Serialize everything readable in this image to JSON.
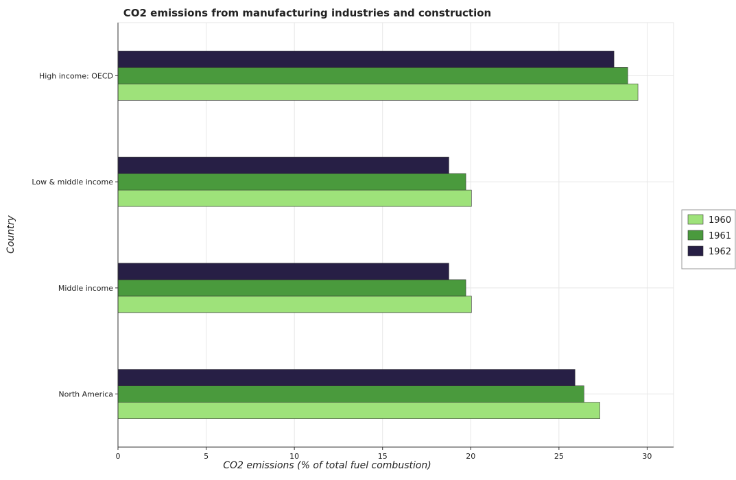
{
  "chart_data": {
    "type": "bar",
    "orientation": "horizontal",
    "title": "CO2 emissions from manufacturing industries and construction",
    "xlabel": "CO2 emissions (% of total fuel combustion)",
    "ylabel": "Country",
    "xlim": [
      0,
      31.5
    ],
    "xticks": [
      0,
      5,
      10,
      15,
      20,
      25,
      30
    ],
    "categories": [
      "High income: OECD",
      "Low & middle income",
      "Middle income",
      "North America"
    ],
    "series": [
      {
        "name": "1960",
        "color": "#9ee27a",
        "values": [
          29.48,
          20.04,
          20.04,
          27.32
        ]
      },
      {
        "name": "1961",
        "color": "#4a9a3d",
        "values": [
          28.9,
          19.72,
          19.72,
          26.42
        ]
      },
      {
        "name": "1962",
        "color": "#271f45",
        "values": [
          28.12,
          18.76,
          18.76,
          25.91
        ]
      }
    ],
    "legend_position": "right",
    "grid": true
  }
}
